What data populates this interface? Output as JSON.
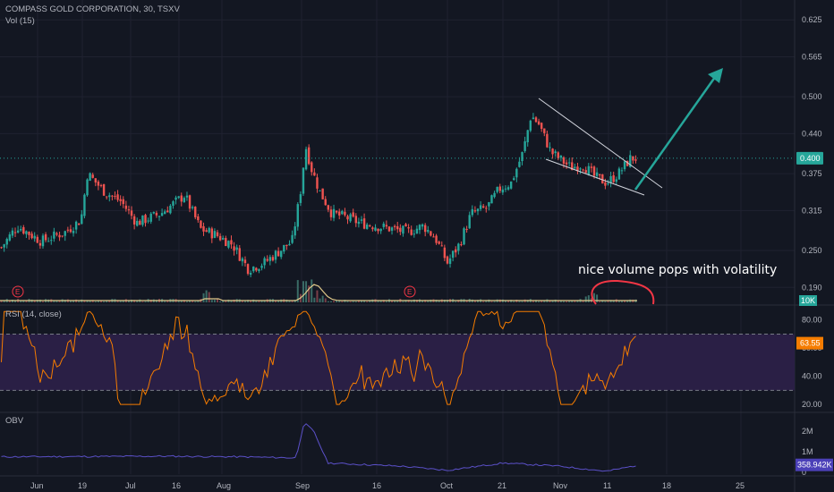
{
  "header": {
    "symbol_line": "COMPASS GOLD CORPORATION, 30, TSXV",
    "vol_label": "Vol (15)"
  },
  "price_pane": {
    "axis_ticks": [
      "0.625",
      "0.565",
      "0.500",
      "0.440",
      "0.375",
      "0.315",
      "0.250",
      "0.190"
    ],
    "current_price": "0.400",
    "current_price_value": 0.4,
    "volume_badge": "10K",
    "annotation": "nice volume pops with volatility",
    "earnings_marker": "E",
    "colors": {
      "up": "#26a69a",
      "down": "#ef5350",
      "arrow": "#26a69a",
      "circle": "#f23645",
      "price_line": "#26a69a"
    }
  },
  "rsi_pane": {
    "label": "RSI (14, close)",
    "axis_ticks": [
      "80.00",
      "60.00",
      "40.00",
      "20.00"
    ],
    "current_value": "63.55",
    "upper_band": 70,
    "lower_band": 30,
    "colors": {
      "line": "#f57c00",
      "band_fill": "#2a1f45"
    }
  },
  "obv_pane": {
    "label": "OBV",
    "axis_ticks": [
      "2M",
      "1M",
      "0"
    ],
    "current_value": "358.942K",
    "colors": {
      "line": "#5b50c8",
      "badge": "#4b40b8"
    }
  },
  "time_axis": {
    "labels": [
      "Jun",
      "19",
      "Jul",
      "16",
      "Aug",
      "Sep",
      "16",
      "Oct",
      "21",
      "Nov",
      "11",
      "18",
      "25"
    ]
  },
  "chart_data": {
    "type": "candlestick",
    "title": "COMPASS GOLD CORPORATION, 30, TSXV",
    "price_keypoints": [
      [
        0,
        0.255
      ],
      [
        0.02,
        0.29
      ],
      [
        0.05,
        0.265
      ],
      [
        0.08,
        0.28
      ],
      [
        0.1,
        0.3
      ],
      [
        0.108,
        0.375
      ],
      [
        0.13,
        0.345
      ],
      [
        0.15,
        0.33
      ],
      [
        0.17,
        0.295
      ],
      [
        0.2,
        0.31
      ],
      [
        0.23,
        0.34
      ],
      [
        0.25,
        0.285
      ],
      [
        0.27,
        0.275
      ],
      [
        0.29,
        0.26
      ],
      [
        0.31,
        0.22
      ],
      [
        0.33,
        0.23
      ],
      [
        0.35,
        0.25
      ],
      [
        0.365,
        0.265
      ],
      [
        0.375,
        0.34
      ],
      [
        0.382,
        0.42
      ],
      [
        0.39,
        0.38
      ],
      [
        0.4,
        0.345
      ],
      [
        0.415,
        0.31
      ],
      [
        0.43,
        0.305
      ],
      [
        0.45,
        0.295
      ],
      [
        0.47,
        0.29
      ],
      [
        0.49,
        0.285
      ],
      [
        0.51,
        0.28
      ],
      [
        0.53,
        0.29
      ],
      [
        0.545,
        0.27
      ],
      [
        0.56,
        0.23
      ],
      [
        0.575,
        0.26
      ],
      [
        0.59,
        0.31
      ],
      [
        0.61,
        0.32
      ],
      [
        0.625,
        0.35
      ],
      [
        0.64,
        0.36
      ],
      [
        0.655,
        0.41
      ],
      [
        0.665,
        0.47
      ],
      [
        0.675,
        0.455
      ],
      [
        0.69,
        0.41
      ],
      [
        0.7,
        0.4
      ],
      [
        0.715,
        0.385
      ],
      [
        0.73,
        0.39
      ],
      [
        0.745,
        0.37
      ],
      [
        0.76,
        0.36
      ],
      [
        0.775,
        0.375
      ],
      [
        0.79,
        0.4
      ]
    ],
    "price_range": [
      0.17,
      0.65
    ],
    "rsi_range": [
      15,
      90
    ],
    "x_categories": [
      "Jun",
      "19",
      "Jul",
      "16",
      "Aug",
      "Sep",
      "16",
      "Oct",
      "21",
      "Nov",
      "11",
      "18",
      "25"
    ]
  }
}
